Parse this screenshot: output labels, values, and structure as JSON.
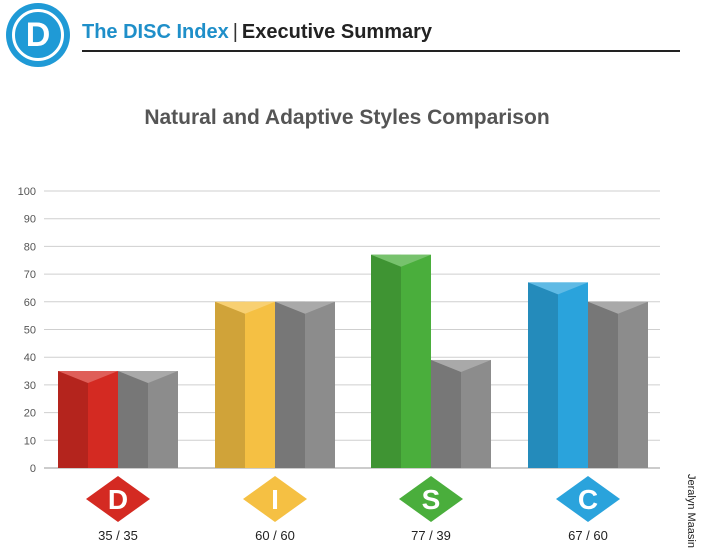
{
  "header": {
    "logo_letter": "D",
    "brand": "The DISC Index",
    "separator": "|",
    "section": "Executive Summary"
  },
  "side_label": "Jeralyn Maasin",
  "chart_data": {
    "type": "bar",
    "title": "Natural and Adaptive Styles Comparison",
    "categories": [
      "D",
      "I",
      "S",
      "C"
    ],
    "series": [
      {
        "values": [
          35,
          60,
          77,
          67
        ]
      },
      {
        "values": [
          35,
          60,
          39,
          60
        ]
      }
    ],
    "value_labels": [
      "35 / 35",
      "60 / 60",
      "77 / 39",
      "67 / 60"
    ],
    "ylim": [
      0,
      100
    ],
    "yticks": [
      0,
      10,
      20,
      30,
      40,
      50,
      60,
      70,
      80,
      90,
      100
    ],
    "grid": true,
    "colors": {
      "D": "#d42a22",
      "I": "#f5c043",
      "S": "#4aae3c",
      "C": "#2aa3dc",
      "adaptive": "#8c8c8c"
    }
  }
}
